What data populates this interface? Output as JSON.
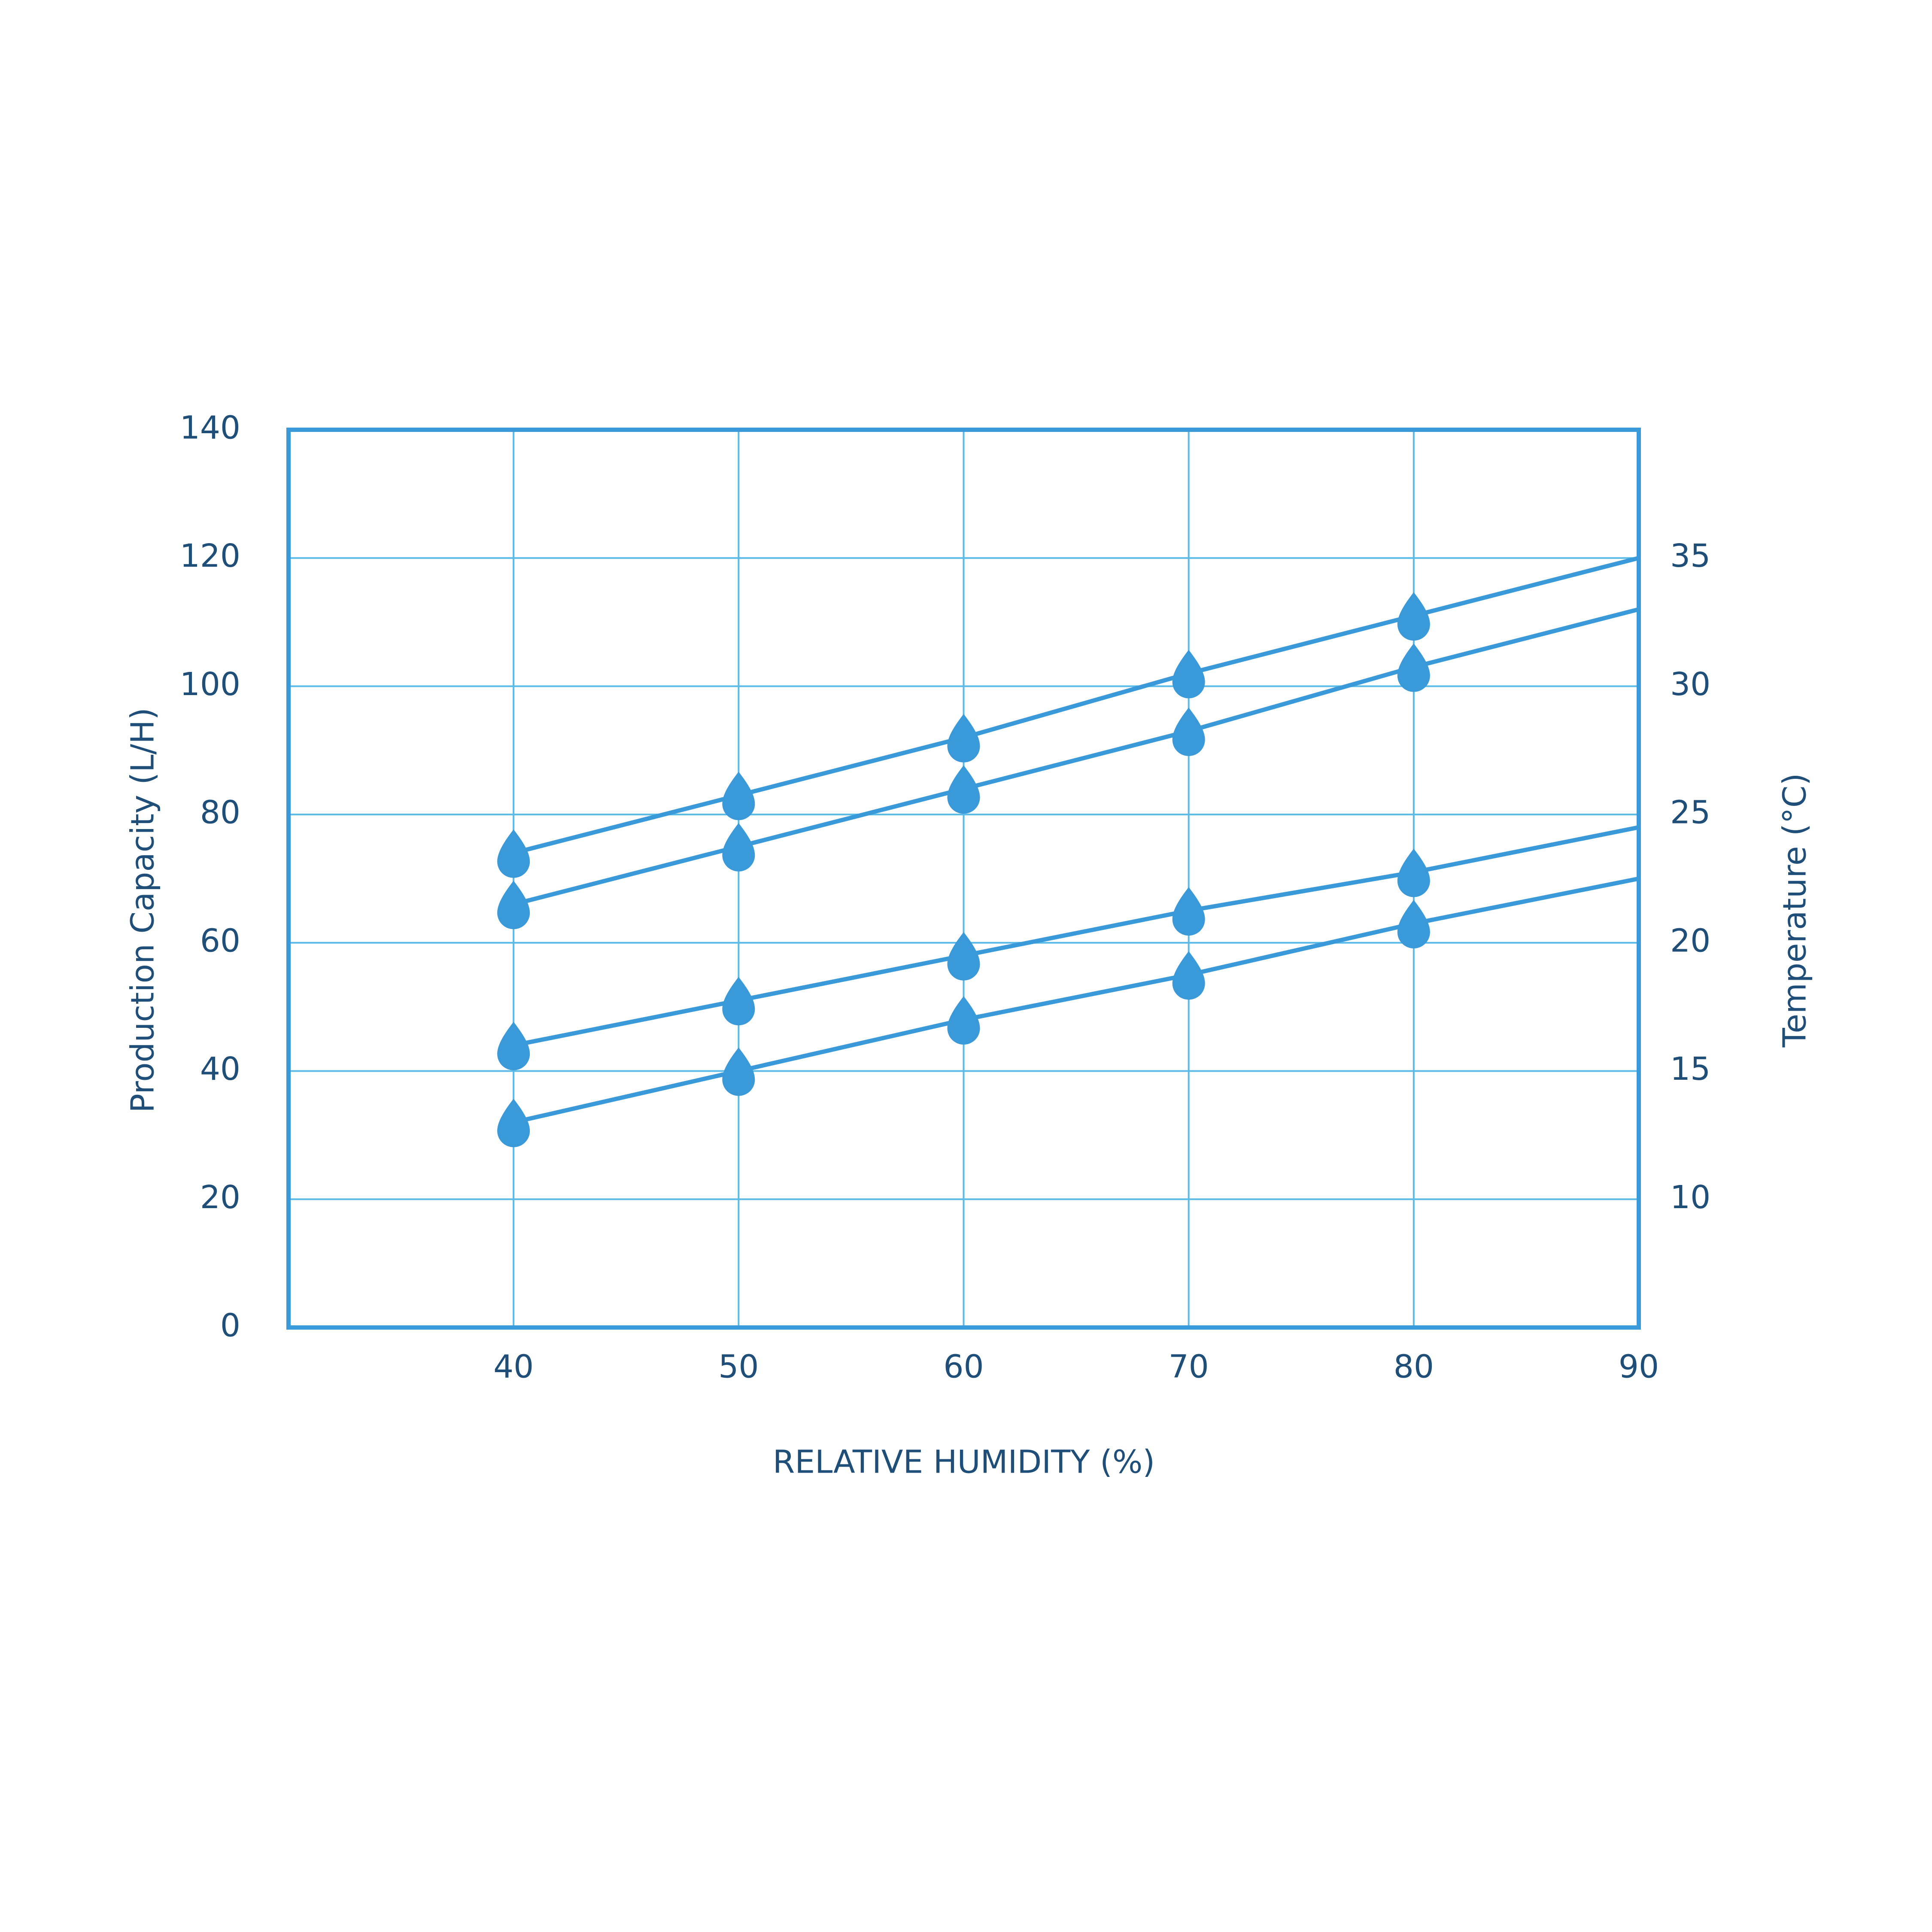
{
  "chart_data": {
    "type": "line",
    "x_label": "RELATIVE HUMIDITY (%)",
    "y_label": "Production Capacity (L/H)",
    "y2_label": "Temperature (°C)",
    "x": [
      40,
      50,
      60,
      70,
      80,
      90
    ],
    "xlim": [
      30,
      90
    ],
    "xticks": [
      40,
      50,
      60,
      70,
      80,
      90
    ],
    "ylim": [
      0,
      140
    ],
    "yticks": [
      0,
      20,
      40,
      60,
      80,
      100,
      120,
      140
    ],
    "y2lim": [
      5,
      40
    ],
    "y2ticks": [
      10,
      15,
      20,
      25,
      30,
      35
    ],
    "grid": true,
    "series": [
      {
        "color": "#3a9ad9",
        "values": [
          74,
          83,
          92,
          102,
          111,
          120
        ]
      },
      {
        "color": "#3a9ad9",
        "values": [
          66,
          75,
          84,
          93,
          103,
          112
        ]
      },
      {
        "color": "#3a9ad9",
        "values": [
          44,
          51,
          58,
          65,
          71,
          78
        ]
      },
      {
        "color": "#3a9ad9",
        "values": [
          32,
          40,
          48,
          55,
          63,
          70
        ]
      }
    ]
  }
}
